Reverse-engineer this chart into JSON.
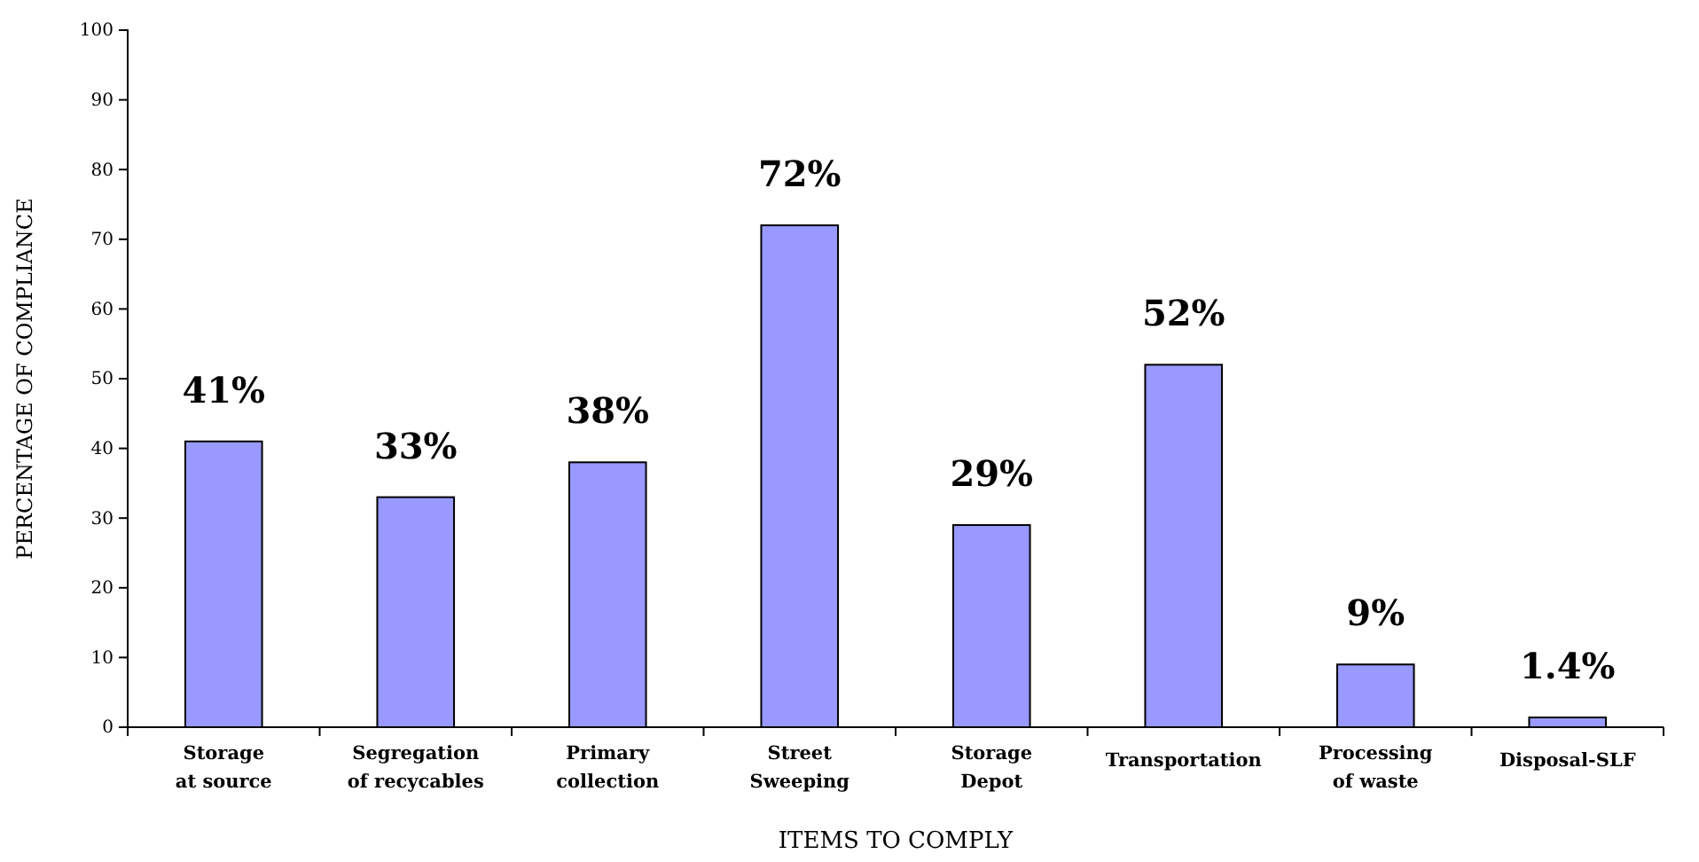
{
  "chart_data": {
    "type": "bar",
    "xlabel": "ITEMS TO COMPLY",
    "ylabel": "PERCENTAGE OF COMPLIANCE",
    "categories": [
      "Storage\nat source",
      "Segregation\nof recycables",
      "Primary\ncollection",
      "Street\nSweeping",
      "Storage\nDepot",
      "Transportation",
      "Processing\nof waste",
      "Disposal-SLF"
    ],
    "values": [
      41,
      33,
      38,
      72,
      29,
      52,
      9,
      1.4
    ],
    "value_labels": [
      "41%",
      "33%",
      "38%",
      "72%",
      "29%",
      "52%",
      "9%",
      "1.4%"
    ],
    "color": "#9999ff",
    "ylim": [
      0,
      100
    ],
    "yticks": [
      0,
      10,
      20,
      30,
      40,
      50,
      60,
      70,
      80,
      90,
      100
    ],
    "grid": false
  }
}
